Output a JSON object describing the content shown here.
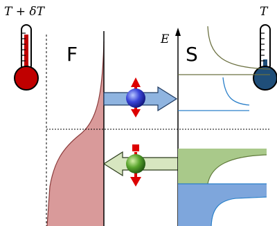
{
  "labels": {
    "hot_temperature": "T + δT",
    "ferromagnet": "F",
    "energy_axis": "E",
    "superconductor": "S",
    "cold_temperature": "T"
  }
}
